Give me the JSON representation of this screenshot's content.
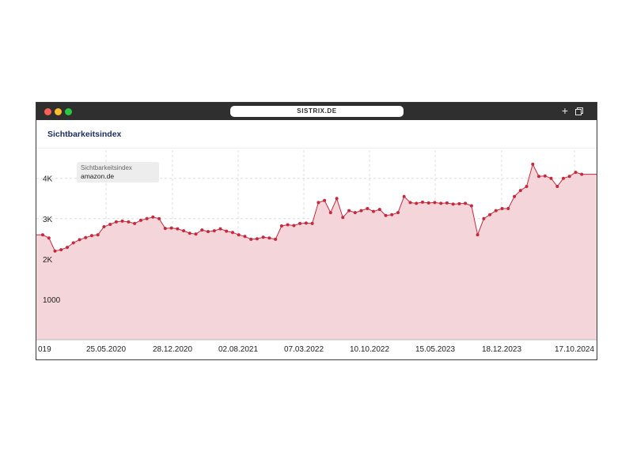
{
  "browser": {
    "address": "SISTRIX.DE",
    "new_tab_icon": "plus-icon",
    "tabs_icon": "copy-icon"
  },
  "panel": {
    "title": "Sichtbarkeitsindex"
  },
  "legend": {
    "title": "Sichtbarkeitsindex",
    "series": "amazon.de"
  },
  "colors": {
    "line": "#c8283c",
    "fill": "#f3d5da",
    "titlebar": "#2f2f2f",
    "title": "#1b2a5e"
  },
  "chart_data": {
    "type": "area",
    "title": "Sichtbarkeitsindex",
    "xlabel": "",
    "ylabel": "",
    "y_ticks": [
      "1000",
      "2K",
      "3K",
      "4K"
    ],
    "y_tick_values": [
      1000,
      2000,
      3000,
      4000
    ],
    "x_ticks": [
      "019",
      "25.05.2020",
      "28.12.2020",
      "02.08.2021",
      "07.03.2022",
      "10.10.2022",
      "15.05.2023",
      "18.12.2023",
      "17.10.2024"
    ],
    "ylim": [
      0,
      4700
    ],
    "grid": true,
    "legend_position": "top-left",
    "series": [
      {
        "name": "amazon.de",
        "x": [
          "2019-10-21",
          "2019-11-11",
          "2019-12-02",
          "2019-12-23",
          "2020-01-13",
          "2020-02-03",
          "2020-02-24",
          "2020-03-16",
          "2020-04-06",
          "2020-04-27",
          "2020-05-18",
          "2020-06-08",
          "2020-06-29",
          "2020-07-20",
          "2020-08-10",
          "2020-08-31",
          "2020-09-21",
          "2020-10-12",
          "2020-11-02",
          "2020-11-23",
          "2020-12-14",
          "2021-01-04",
          "2021-01-25",
          "2021-02-15",
          "2021-03-08",
          "2021-03-29",
          "2021-04-19",
          "2021-05-10",
          "2021-05-31",
          "2021-06-21",
          "2021-07-12",
          "2021-08-02",
          "2021-08-23",
          "2021-09-13",
          "2021-10-04",
          "2021-10-25",
          "2021-11-15",
          "2021-12-06",
          "2021-12-27",
          "2022-01-17",
          "2022-02-07",
          "2022-02-28",
          "2022-03-21",
          "2022-04-11",
          "2022-05-02",
          "2022-05-23",
          "2022-06-13",
          "2022-07-04",
          "2022-07-25",
          "2022-08-15",
          "2022-09-05",
          "2022-09-26",
          "2022-10-17",
          "2022-11-07",
          "2022-11-28",
          "2022-12-19",
          "2023-01-09",
          "2023-01-30",
          "2023-02-20",
          "2023-03-13",
          "2023-04-03",
          "2023-04-24",
          "2023-05-15",
          "2023-06-05",
          "2023-06-26",
          "2023-07-17",
          "2023-08-07",
          "2023-08-28",
          "2023-09-18",
          "2023-10-09",
          "2023-10-30",
          "2023-11-20",
          "2023-12-11",
          "2024-01-01",
          "2024-01-22",
          "2024-02-12",
          "2024-03-04",
          "2024-03-25",
          "2024-04-15",
          "2024-05-06",
          "2024-05-27",
          "2024-06-17",
          "2024-07-08",
          "2024-07-29",
          "2024-08-19",
          "2024-09-09",
          "2024-09-30",
          "2024-10-21",
          "2024-11-11"
        ],
        "y": [
          2600,
          2520,
          2200,
          2230,
          2290,
          2400,
          2480,
          2530,
          2580,
          2600,
          2800,
          2860,
          2920,
          2940,
          2920,
          2880,
          2960,
          3000,
          3040,
          3000,
          2760,
          2770,
          2750,
          2700,
          2640,
          2620,
          2720,
          2680,
          2700,
          2750,
          2690,
          2660,
          2600,
          2560,
          2490,
          2500,
          2540,
          2520,
          2490,
          2820,
          2850,
          2830,
          2880,
          2890,
          2880,
          3400,
          3450,
          3150,
          3500,
          3030,
          3200,
          3150,
          3200,
          3250,
          3180,
          3230,
          3080,
          3100,
          3150,
          3550,
          3400,
          3380,
          3410,
          3390,
          3400,
          3380,
          3390,
          3360,
          3370,
          3380,
          3320,
          2600,
          3000,
          3100,
          3200,
          3250,
          3250,
          3550,
          3700,
          3800,
          4350,
          4050,
          4060,
          4000,
          3800,
          4000,
          4050,
          4150,
          4100
        ]
      }
    ]
  }
}
